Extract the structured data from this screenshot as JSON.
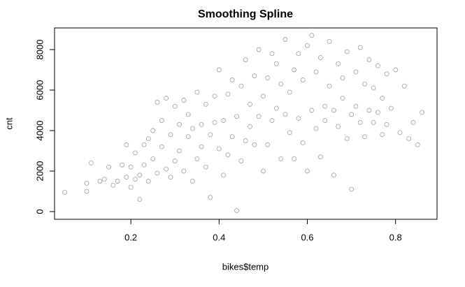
{
  "chart_data": {
    "type": "scatter",
    "title": "Smoothing Spline",
    "x_label": "bikes$temp",
    "y_label": "cnt",
    "xlim": [
      0.027,
      0.894
    ],
    "ylim": [
      -379,
      9069
    ],
    "xticks": [
      0.2,
      0.4,
      0.6,
      0.8
    ],
    "yticks": [
      0,
      2000,
      4000,
      6000,
      8000
    ],
    "color": "#a9a9a9",
    "x": [
      0.05,
      0.1,
      0.1,
      0.11,
      0.13,
      0.14,
      0.15,
      0.16,
      0.17,
      0.18,
      0.19,
      0.19,
      0.2,
      0.2,
      0.21,
      0.21,
      0.22,
      0.22,
      0.23,
      0.23,
      0.24,
      0.24,
      0.25,
      0.25,
      0.26,
      0.26,
      0.27,
      0.27,
      0.28,
      0.28,
      0.29,
      0.29,
      0.3,
      0.3,
      0.31,
      0.31,
      0.32,
      0.32,
      0.33,
      0.33,
      0.34,
      0.34,
      0.35,
      0.35,
      0.36,
      0.36,
      0.37,
      0.37,
      0.38,
      0.38,
      0.39,
      0.39,
      0.4,
      0.4,
      0.41,
      0.41,
      0.42,
      0.42,
      0.43,
      0.43,
      0.44,
      0.44,
      0.45,
      0.45,
      0.46,
      0.46,
      0.47,
      0.47,
      0.48,
      0.48,
      0.49,
      0.49,
      0.5,
      0.5,
      0.51,
      0.51,
      0.52,
      0.52,
      0.53,
      0.53,
      0.54,
      0.54,
      0.55,
      0.55,
      0.56,
      0.56,
      0.57,
      0.57,
      0.58,
      0.58,
      0.59,
      0.59,
      0.6,
      0.6,
      0.61,
      0.61,
      0.62,
      0.62,
      0.63,
      0.63,
      0.64,
      0.64,
      0.65,
      0.65,
      0.66,
      0.66,
      0.67,
      0.67,
      0.68,
      0.68,
      0.69,
      0.69,
      0.7,
      0.7,
      0.71,
      0.71,
      0.72,
      0.72,
      0.73,
      0.73,
      0.74,
      0.74,
      0.75,
      0.75,
      0.76,
      0.76,
      0.77,
      0.77,
      0.78,
      0.78,
      0.79,
      0.8,
      0.81,
      0.82,
      0.83,
      0.84,
      0.85,
      0.86
    ],
    "values": [
      950,
      1000,
      1400,
      2400,
      1500,
      1600,
      2200,
      1300,
      1500,
      2300,
      1700,
      3300,
      1200,
      2200,
      1600,
      2900,
      600,
      1800,
      2300,
      3300,
      1500,
      3600,
      2600,
      4000,
      1900,
      5400,
      3200,
      4500,
      2100,
      5600,
      3800,
      1700,
      2500,
      5200,
      4300,
      3000,
      2000,
      5500,
      3700,
      4800,
      1500,
      4100,
      2600,
      5900,
      4300,
      3200,
      5300,
      2200,
      700,
      3800,
      4400,
      5700,
      3100,
      7000,
      4500,
      1800,
      5800,
      2800,
      3700,
      6500,
      50,
      4700,
      2500,
      6200,
      3500,
      7500,
      5300,
      4200,
      6700,
      3300,
      4700,
      8000,
      2000,
      5700,
      6600,
      3300,
      7800,
      4500,
      5100,
      7300,
      2600,
      6300,
      8500,
      4800,
      5900,
      3900,
      7000,
      2600,
      4600,
      7800,
      6500,
      3400,
      8200,
      2000,
      5000,
      8700,
      4100,
      6900,
      7600,
      2700,
      5200,
      4500,
      6200,
      8400,
      1800,
      5000,
      7300,
      4200,
      5600,
      6600,
      7900,
      3600,
      4800,
      1100,
      6900,
      5200,
      8100,
      4400,
      6300,
      3700,
      5000,
      7500,
      4400,
      6100,
      7200,
      4900,
      5600,
      3800,
      6800,
      4300,
      5100,
      7000,
      3900,
      6200,
      3600,
      4400,
      3300,
      4900
    ]
  }
}
